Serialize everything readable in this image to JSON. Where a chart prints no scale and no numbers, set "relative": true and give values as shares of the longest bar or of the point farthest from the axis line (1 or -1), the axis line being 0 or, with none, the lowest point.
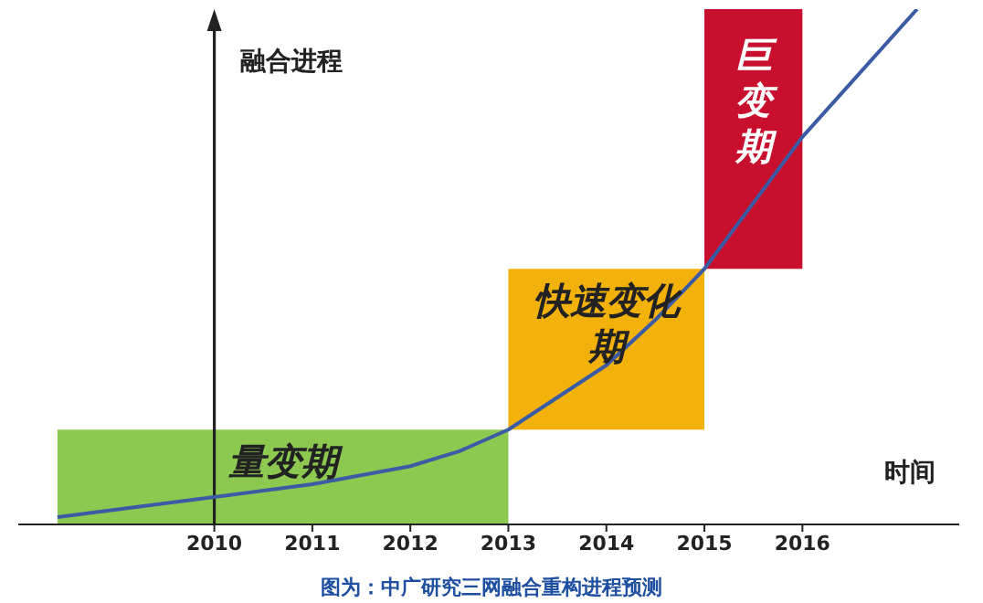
{
  "chart_data": {
    "type": "line",
    "relative": true,
    "xlabel": "时间",
    "ylabel": "融合进程",
    "x": [
      2008.4,
      2010,
      2011,
      2012,
      2012.5,
      2013,
      2014,
      2014.5,
      2015,
      2016,
      2016.5,
      2017.17
    ],
    "series": [
      {
        "color": "#3b5ba5",
        "values": [
          0.014,
          0.053,
          0.078,
          0.113,
          0.142,
          0.184,
          0.309,
          0.397,
          0.496,
          0.752,
          0.858,
          1
        ]
      }
    ],
    "xlim": [
      2008,
      2017.6
    ],
    "xticks": [
      2010,
      2011,
      2012,
      2013,
      2014,
      2015,
      2016
    ],
    "bands": [
      {
        "axis": "x",
        "from": 2008.4,
        "to": 2013,
        "label": "量变期",
        "color": "#8dc850"
      },
      {
        "axis": "x",
        "from": 2013,
        "to": 2015,
        "label": "快速变化期",
        "color": "#f3b10c"
      },
      {
        "axis": "x",
        "from": 2015,
        "to": 2016,
        "label": "巨变期",
        "color": "#c8102e"
      }
    ],
    "grid": false,
    "legend": false,
    "marker": "none",
    "line_style": "solid",
    "annotations": [
      "图为：中广研究三网融合重构进程预测"
    ]
  }
}
